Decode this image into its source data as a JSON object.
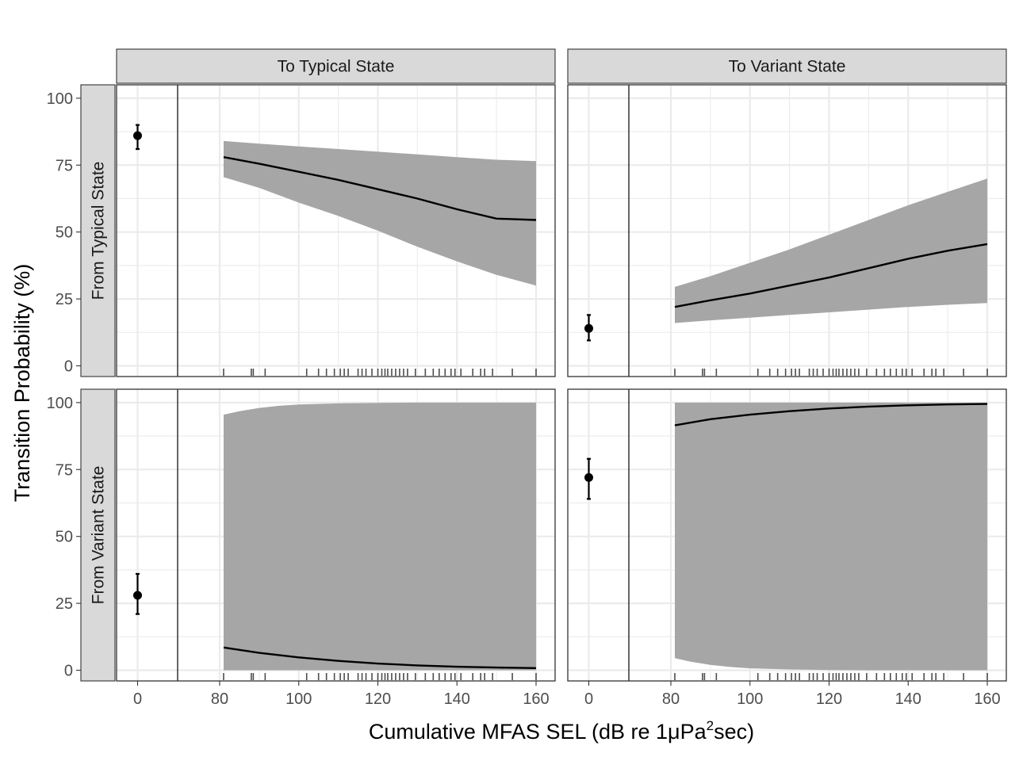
{
  "chart_data": {
    "type": "line",
    "xlabel_main": "Cumulative MFAS SEL (dB re 1",
    "xlabel_mu": "μ",
    "xlabel_pa": "Pa",
    "xlabel_sup": "2",
    "xlabel_end": "sec)",
    "ylabel": "Transition Probability (%)",
    "columns": [
      "To Typical State",
      "To Variant State"
    ],
    "rows": [
      "From Typical State",
      "From Variant State"
    ],
    "x_ticks": [
      0,
      80,
      100,
      120,
      140,
      160
    ],
    "x_tick_labels": [
      "0",
      "80",
      "100",
      "120",
      "140",
      "160"
    ],
    "y_ticks": [
      0,
      25,
      50,
      75,
      100
    ],
    "y_tick_labels": [
      "0",
      "25",
      "50",
      "75",
      "100"
    ],
    "ylim": [
      -4,
      105
    ],
    "x_break_between": [
      0,
      80
    ],
    "rug_x": [
      81,
      88,
      88.5,
      91.5,
      102,
      105,
      107,
      109,
      110.5,
      111.5,
      112.5,
      115,
      116,
      117,
      118.5,
      120,
      121,
      121.8,
      122.5,
      123.5,
      124.5,
      125.5,
      126.5,
      127.5,
      129.5,
      132,
      134,
      135.5,
      137,
      138.5,
      139.5,
      141,
      144,
      146,
      147,
      149,
      154,
      160
    ],
    "panels": [
      {
        "row": "From Typical State",
        "col": "To Typical State",
        "baseline": {
          "x": 0,
          "y": 86,
          "lo": 81,
          "hi": 90
        },
        "fit": {
          "x": [
            81,
            90,
            100,
            110,
            120,
            130,
            140,
            150,
            160
          ],
          "y": [
            78,
            75.5,
            72.5,
            69.5,
            66,
            62.5,
            58.5,
            55,
            54.5
          ]
        },
        "ribbon": {
          "x": [
            81,
            90,
            100,
            110,
            120,
            130,
            140,
            150,
            160
          ],
          "lo": [
            70.5,
            66.5,
            61,
            56,
            50.5,
            44.5,
            39,
            34,
            30
          ],
          "hi": [
            84,
            83,
            82,
            81,
            80,
            79,
            78,
            77,
            76.5
          ]
        }
      },
      {
        "row": "From Typical State",
        "col": "To Variant State",
        "baseline": {
          "x": 0,
          "y": 14,
          "lo": 9.5,
          "hi": 19
        },
        "fit": {
          "x": [
            81,
            90,
            100,
            110,
            120,
            130,
            140,
            150,
            160
          ],
          "y": [
            22,
            24.5,
            27,
            30,
            33,
            36.5,
            40,
            43,
            45.5
          ]
        },
        "ribbon": {
          "x": [
            81,
            90,
            100,
            110,
            120,
            130,
            140,
            150,
            160
          ],
          "lo": [
            16,
            17,
            18,
            19,
            20,
            21,
            22,
            22.8,
            23.5
          ],
          "hi": [
            29.5,
            33.5,
            38.5,
            43.5,
            49,
            54.5,
            60,
            65,
            70
          ]
        }
      },
      {
        "row": "From Variant State",
        "col": "To Typical State",
        "baseline": {
          "x": 0,
          "y": 28,
          "lo": 21,
          "hi": 36
        },
        "fit": {
          "x": [
            81,
            90,
            100,
            110,
            120,
            130,
            140,
            150,
            160
          ],
          "y": [
            8.5,
            6.5,
            4.8,
            3.5,
            2.5,
            1.8,
            1.3,
            1,
            0.8
          ]
        },
        "ribbon": {
          "x": [
            81,
            85,
            90,
            95,
            100,
            110,
            120,
            130,
            140,
            150,
            160
          ],
          "lo": [
            0,
            0,
            0,
            0,
            0,
            0,
            0,
            0,
            0,
            0,
            0
          ],
          "hi": [
            95.5,
            96.8,
            98,
            98.8,
            99.3,
            99.7,
            99.9,
            100,
            100,
            100,
            100
          ]
        }
      },
      {
        "row": "From Variant State",
        "col": "To Variant State",
        "baseline": {
          "x": 0,
          "y": 72,
          "lo": 64,
          "hi": 79
        },
        "fit": {
          "x": [
            81,
            90,
            100,
            110,
            120,
            130,
            140,
            150,
            160
          ],
          "y": [
            91.5,
            93.8,
            95.5,
            96.8,
            97.8,
            98.5,
            99,
            99.3,
            99.5
          ]
        },
        "ribbon": {
          "x": [
            81,
            85,
            90,
            95,
            100,
            110,
            120,
            130,
            140,
            150,
            160
          ],
          "lo": [
            4.5,
            3.2,
            2,
            1.2,
            0.7,
            0.3,
            0.1,
            0,
            0,
            0,
            0
          ],
          "hi": [
            100,
            100,
            100,
            100,
            100,
            100,
            100,
            100,
            100,
            100,
            100
          ]
        }
      }
    ]
  }
}
